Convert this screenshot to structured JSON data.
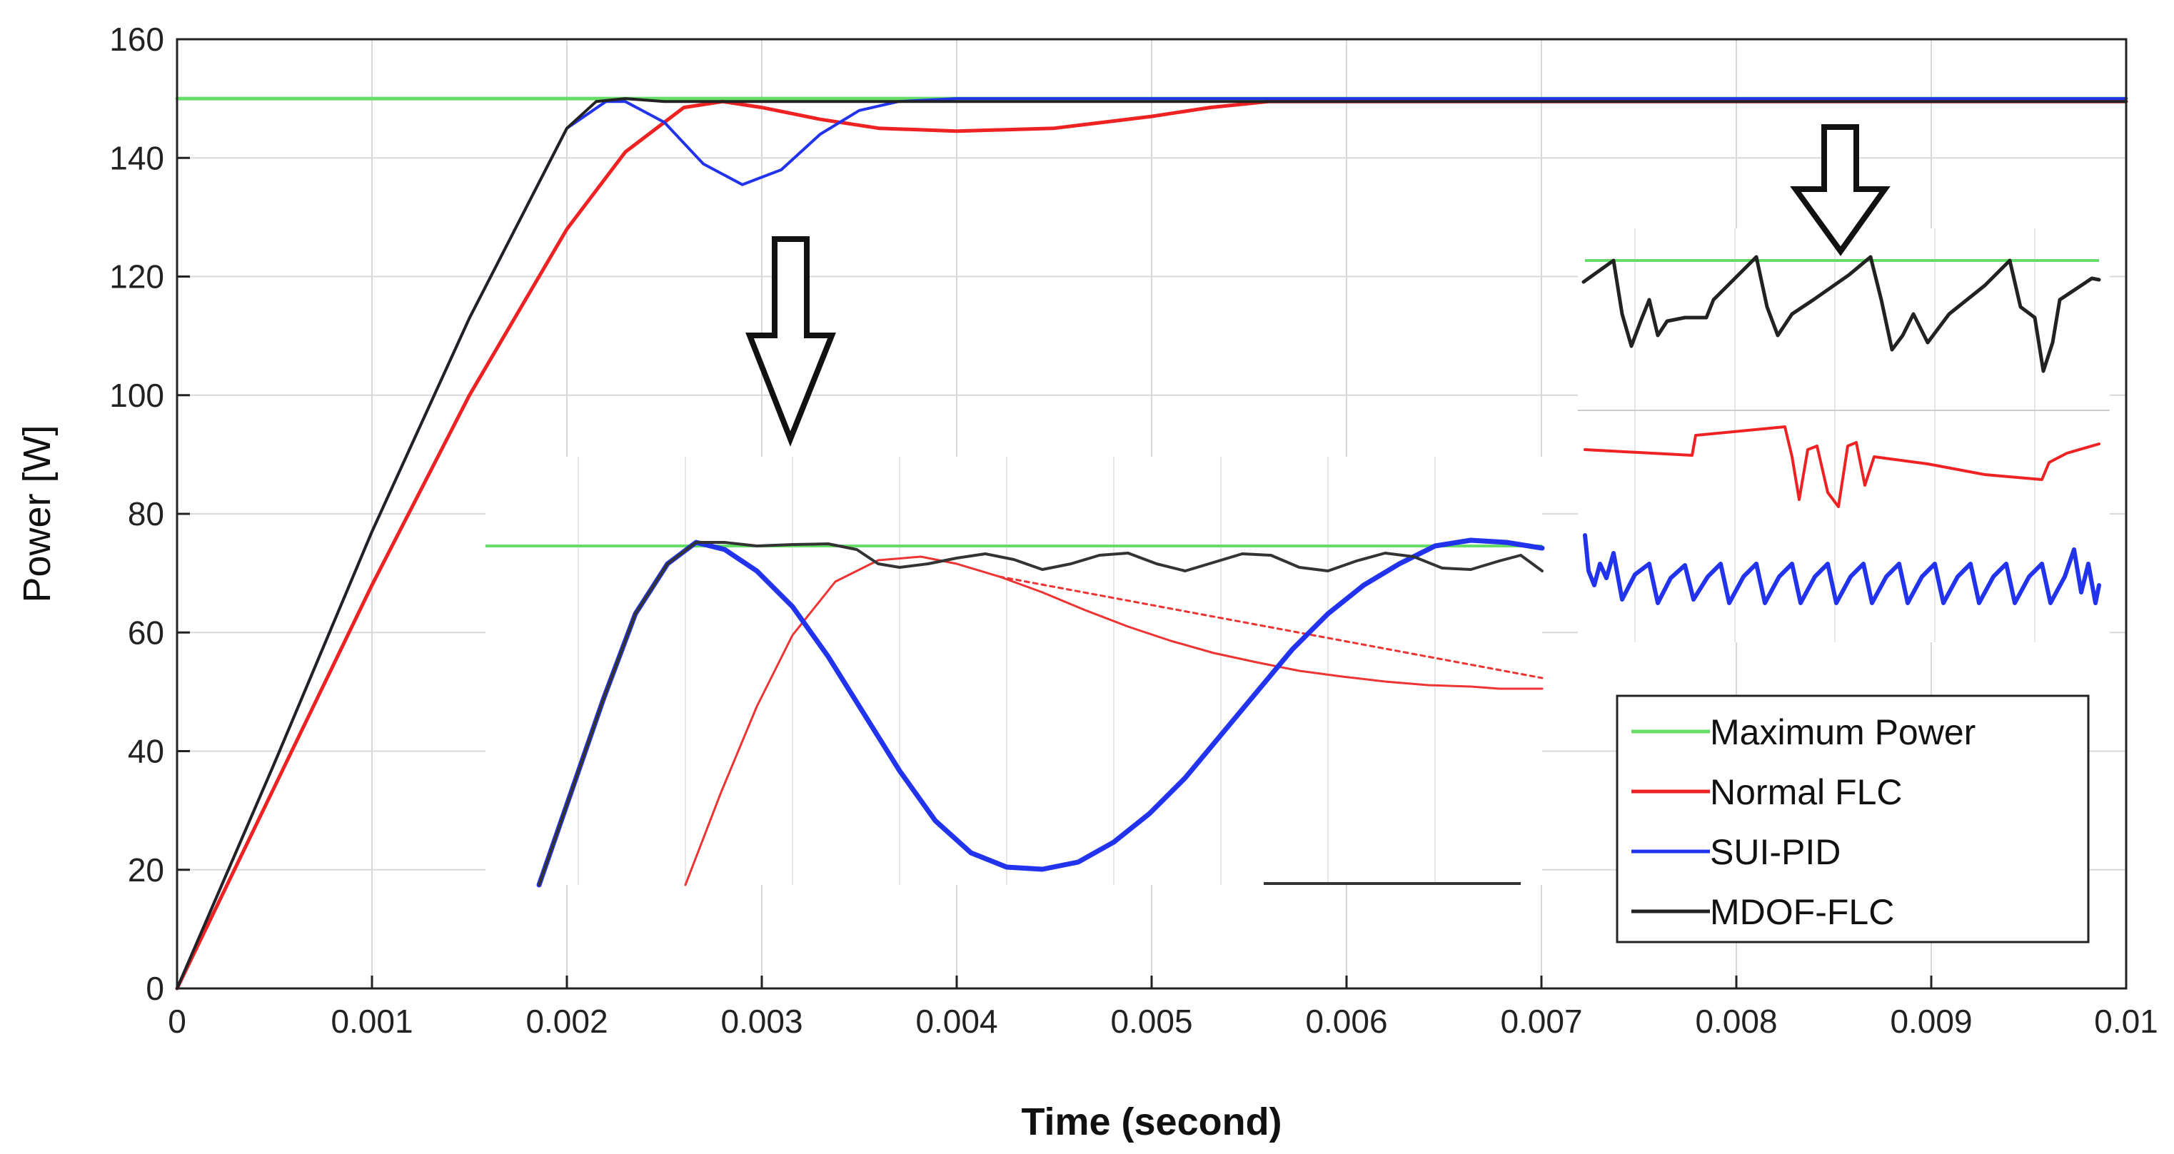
{
  "chart_data": {
    "type": "line",
    "title": "",
    "xlabel": "Time (second)",
    "ylabel": "Power [W]",
    "xlim": [
      0,
      0.01
    ],
    "ylim": [
      0,
      160
    ],
    "x_ticks": [
      {
        "value": 0,
        "label": "0"
      },
      {
        "value": 0.001,
        "label": "0.001"
      },
      {
        "value": 0.002,
        "label": "0.002"
      },
      {
        "value": 0.003,
        "label": "0.003"
      },
      {
        "value": 0.004,
        "label": "0.004"
      },
      {
        "value": 0.005,
        "label": "0.005"
      },
      {
        "value": 0.006,
        "label": "0.006"
      },
      {
        "value": 0.007,
        "label": "0.007"
      },
      {
        "value": 0.008,
        "label": "0.008"
      },
      {
        "value": 0.009,
        "label": "0.009"
      },
      {
        "value": 0.01,
        "label": "0.01"
      }
    ],
    "y_ticks": [
      {
        "value": 0,
        "label": "0"
      },
      {
        "value": 20,
        "label": "20"
      },
      {
        "value": 40,
        "label": "40"
      },
      {
        "value": 60,
        "label": "60"
      },
      {
        "value": 80,
        "label": "80"
      },
      {
        "value": 100,
        "label": "100"
      },
      {
        "value": 120,
        "label": "120"
      },
      {
        "value": 140,
        "label": "140"
      },
      {
        "value": 160,
        "label": "160"
      }
    ],
    "grid": true,
    "legend_position": "bottom-right",
    "series": [
      {
        "name": "Maximum Power",
        "color": "#66dd66",
        "x": [
          0,
          0.01
        ],
        "y": [
          150,
          150
        ]
      },
      {
        "name": "Normal FLC",
        "color": "#ee2222",
        "x": [
          0,
          0.0005,
          0.001,
          0.0015,
          0.002,
          0.0023,
          0.0026,
          0.0028,
          0.003,
          0.0033,
          0.0036,
          0.004,
          0.0045,
          0.005,
          0.0053,
          0.0056,
          0.006,
          0.008,
          0.01
        ],
        "y": [
          0,
          34,
          68,
          100,
          128,
          141,
          148.5,
          149.5,
          148.5,
          146.5,
          145,
          144.5,
          145,
          147,
          148.5,
          149.5,
          149.5,
          149.5,
          149.5
        ]
      },
      {
        "name": "SUI-PID",
        "color": "#2233ee",
        "x": [
          0,
          0.0005,
          0.001,
          0.0015,
          0.002,
          0.0022,
          0.0023,
          0.0025,
          0.0027,
          0.0029,
          0.0031,
          0.0033,
          0.0035,
          0.0037,
          0.004,
          0.006,
          0.008,
          0.01
        ],
        "y": [
          0,
          38,
          77,
          113,
          145,
          149.5,
          149.5,
          146,
          139,
          135.5,
          138,
          144,
          148,
          149.5,
          150,
          150,
          150,
          150
        ]
      },
      {
        "name": "MDOF-FLC",
        "color": "#222222",
        "x": [
          0,
          0.0005,
          0.001,
          0.0015,
          0.002,
          0.00215,
          0.0023,
          0.0025,
          0.003,
          0.0035,
          0.004,
          0.005,
          0.006,
          0.008,
          0.01
        ],
        "y": [
          0,
          38,
          77,
          113,
          145,
          149.5,
          150,
          149.5,
          149.5,
          149.5,
          149.5,
          149.5,
          149.5,
          149.5,
          149.5
        ]
      }
    ],
    "insets": [
      "zoom of rise and settling (0.0016–0.007 s)",
      "zoom of steady-state ripple"
    ]
  }
}
